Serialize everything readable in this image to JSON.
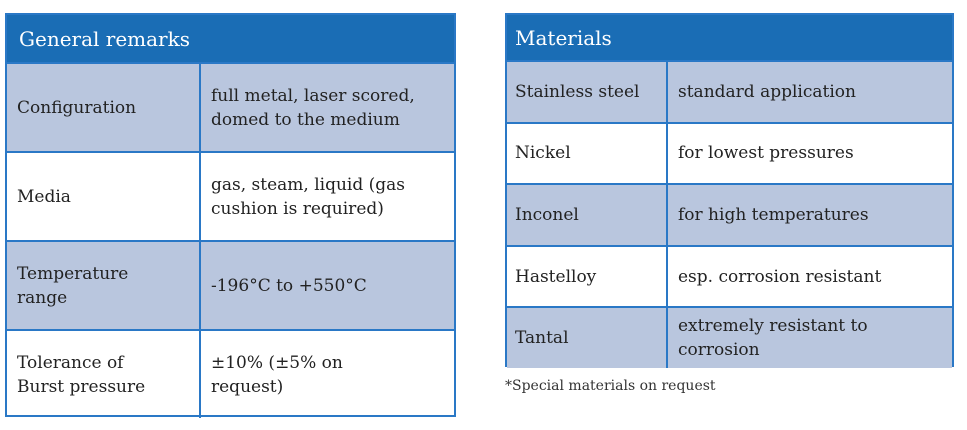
{
  "general": {
    "title": "General remarks",
    "rows": [
      {
        "label": "Configuration",
        "value": "full metal, laser scored, domed to the medium"
      },
      {
        "label": "Media",
        "value": "gas, steam, liquid (gas cushion is required)"
      },
      {
        "label": "Temperature range",
        "value": "-196°C to +550°C"
      },
      {
        "label": "Tolerance of Burst pressure",
        "value": "±10% (±5% on request)"
      }
    ]
  },
  "materials": {
    "title": "Materials",
    "rows": [
      {
        "label": "Stainless steel",
        "value": "standard application"
      },
      {
        "label": "Nickel",
        "value": "for lowest pressures"
      },
      {
        "label": "Inconel",
        "value": "for high temperatures"
      },
      {
        "label": "Hastelloy",
        "value": "esp. corrosion resistant"
      },
      {
        "label": "Tantal",
        "value": "extremely resistant to corrosion"
      }
    ],
    "footnote": "*Special materials on request"
  },
  "colors": {
    "header": "#1a6db5",
    "band": "#b9c6de",
    "border": "#2a78c6"
  }
}
